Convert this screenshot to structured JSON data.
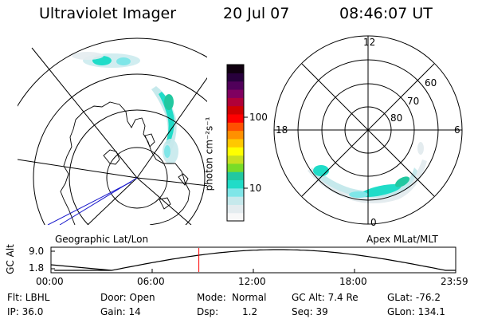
{
  "header": {
    "title": "Ultraviolet Imager",
    "date": "20 Jul 07",
    "time": "08:46:07 UT"
  },
  "colorbar": {
    "ticks": [
      "100",
      "10"
    ],
    "unit_label": "photon cm⁻²s⁻¹",
    "colors": [
      "#f8f8f8",
      "#e4ecef",
      "#c6e9ec",
      "#7fe6e8",
      "#20dcc8",
      "#22c8a0",
      "#78dc28",
      "#c8e020",
      "#ffff00",
      "#ffc800",
      "#ff9000",
      "#ff5000",
      "#ff0000",
      "#d00000",
      "#b00038",
      "#800060",
      "#50005a",
      "#28003c",
      "#100010"
    ]
  },
  "left_panel": {
    "label": "Geographic Lat/Lon"
  },
  "right_panel": {
    "label": "Apex MLat/MLT",
    "mlt_labels": {
      "top": "12",
      "left": "18",
      "right": "6",
      "bottom": "0"
    },
    "lat_labels": [
      "60",
      "70",
      "80"
    ]
  },
  "timeline": {
    "axis_title": "GC Alt",
    "y_max": "9.0",
    "y_min": "1.8",
    "x_ticks": [
      "00:00",
      "06:00",
      "12:00",
      "18:00",
      "23:59"
    ],
    "current_time_hours": 8.77,
    "marker_color": "#ff0000"
  },
  "info": {
    "filter": "Flt: LBHL",
    "ip": "IP: 36.0",
    "door": "Door: Open",
    "gain": "Gain: 14",
    "mode_label": "Mode:",
    "mode_value": "Normal",
    "dsp_label": "Dsp:",
    "dsp_value": "1.2",
    "gc_alt": "GC Alt: 7.4 Re",
    "seq": "Seq: 39",
    "glat": "GLat: -76.2",
    "glon": "GLon: 134.1"
  }
}
